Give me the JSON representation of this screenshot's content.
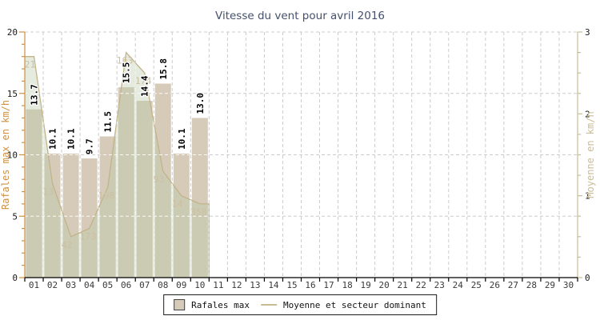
{
  "title": "Vitesse du vent pour avril 2016",
  "colors": {
    "title": "#44506b",
    "bar": "#d6cbb8",
    "area_fill": "#bacbaa",
    "line": "#c3b389",
    "left_axis": "#cd9044",
    "right_axis": "#c9bc94",
    "grid": "#cccccc",
    "sector_label": "#cdbfa0",
    "x_axis": "#000000"
  },
  "chart_data": {
    "type": "bar",
    "title": "Vitesse du vent pour avril 2016",
    "categories": [
      "01",
      "02",
      "03",
      "04",
      "05",
      "06",
      "07",
      "08",
      "09",
      "10",
      "11",
      "12",
      "13",
      "14",
      "15",
      "16",
      "17",
      "18",
      "19",
      "20",
      "21",
      "22",
      "23",
      "24",
      "25",
      "26",
      "27",
      "28",
      "29",
      "30"
    ],
    "grid": true,
    "legend_position": "bottom",
    "left_axis": {
      "label": "Rafales max en km/h",
      "range": [
        0,
        20
      ],
      "ticks": [
        0,
        5,
        10,
        15,
        20
      ]
    },
    "right_axis": {
      "label": "Moyenne en km/h",
      "range": [
        0,
        3
      ],
      "ticks": [
        0,
        1,
        2,
        3
      ]
    },
    "series": [
      {
        "name": "Rafales max",
        "type": "bar",
        "axis": "left",
        "unit": "km/h",
        "days": [
          "01",
          "02",
          "03",
          "04",
          "05",
          "06",
          "07",
          "08",
          "09",
          "10"
        ],
        "values": [
          13.7,
          10.1,
          10.1,
          9.7,
          11.5,
          15.5,
          14.4,
          15.8,
          10.1,
          13.0
        ],
        "value_labels": [
          "13.7",
          "10.1",
          "10.1",
          "9.7",
          "11.5",
          "15.5",
          "14.4",
          "15.8",
          "10.1",
          "13.0"
        ]
      },
      {
        "name": "Moyenne et secteur dominant",
        "type": "area-line",
        "axis": "right",
        "unit": "km/h",
        "days": [
          "01",
          "02",
          "03",
          "04",
          "05",
          "06",
          "07",
          "08",
          "09",
          "10"
        ],
        "values": [
          2.7,
          1.15,
          0.5,
          0.6,
          1.1,
          2.75,
          2.5,
          1.3,
          1.0,
          0.9
        ],
        "sector_labels": [
          "21",
          "13",
          "42",
          "173",
          "198",
          "163",
          "174",
          "93",
          "14",
          "358"
        ]
      }
    ]
  },
  "legend": {
    "rafales_label": "Rafales max",
    "moyenne_label": "Moyenne et secteur dominant"
  }
}
